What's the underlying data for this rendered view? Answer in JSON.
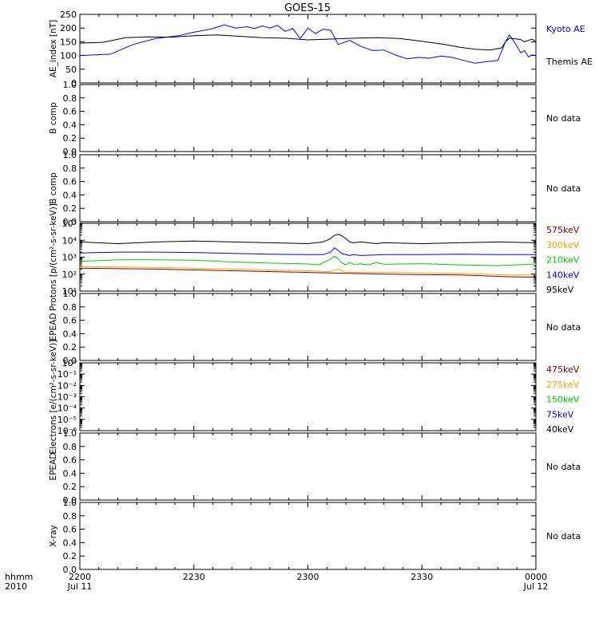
{
  "title": "GOES-15",
  "no_data_label": "No data",
  "time_axis": {
    "row1_label": "hhmm",
    "row2_label": "2010",
    "ticks": [
      {
        "label": "2200",
        "sub": "Jul 11",
        "minutes": 0
      },
      {
        "label": "2230",
        "sub": "",
        "minutes": 30
      },
      {
        "label": "2300",
        "sub": "",
        "minutes": 60
      },
      {
        "label": "2330",
        "sub": "",
        "minutes": 90
      },
      {
        "label": "0000",
        "sub": "Jul 12",
        "minutes": 120
      }
    ]
  },
  "chart_data": [
    {
      "id": "ae",
      "type": "line",
      "ylabel": "AE_index [nT]",
      "ylim": [
        0,
        250
      ],
      "yticks": [
        {
          "v": 0,
          "l": "0"
        },
        {
          "v": 50,
          "l": "50"
        },
        {
          "v": 100,
          "l": "100"
        },
        {
          "v": 150,
          "l": "150"
        },
        {
          "v": 200,
          "l": "200"
        },
        {
          "v": 250,
          "l": "250"
        }
      ],
      "series": [
        {
          "name": "Kyoto AE",
          "color": "#0000ff",
          "x": [
            0,
            8,
            14,
            20,
            26,
            30,
            35,
            38,
            41,
            44,
            46,
            48,
            50,
            52,
            54,
            56,
            58,
            60,
            62,
            64,
            66,
            68,
            71,
            74,
            77,
            80,
            83,
            86,
            89,
            92,
            95,
            98,
            101,
            104,
            107,
            110,
            112,
            113,
            114,
            115,
            116,
            117,
            118,
            119,
            120
          ],
          "y": [
            100,
            105,
            140,
            162,
            172,
            185,
            198,
            212,
            200,
            205,
            198,
            208,
            200,
            210,
            188,
            198,
            162,
            200,
            180,
            196,
            192,
            140,
            155,
            133,
            118,
            120,
            102,
            88,
            93,
            90,
            98,
            93,
            82,
            72,
            78,
            82,
            150,
            175,
            155,
            135,
            110,
            118,
            95,
            102,
            100
          ]
        },
        {
          "name": "Themis AE",
          "color": "#000000",
          "x": [
            0,
            6,
            12,
            18,
            24,
            30,
            36,
            42,
            48,
            54,
            60,
            66,
            72,
            78,
            84,
            90,
            96,
            100,
            104,
            108,
            111,
            112,
            113,
            114,
            115,
            116,
            117,
            118,
            119,
            120
          ],
          "y": [
            145,
            148,
            165,
            168,
            167,
            172,
            175,
            170,
            165,
            163,
            157,
            160,
            163,
            165,
            162,
            152,
            140,
            130,
            123,
            120,
            128,
            150,
            163,
            162,
            160,
            158,
            150,
            155,
            160,
            150
          ]
        }
      ]
    },
    {
      "id": "b1",
      "type": "line",
      "ylabel": "B comp",
      "ylim": [
        0,
        1
      ],
      "yticks": [
        {
          "v": 0,
          "l": "0.0"
        },
        {
          "v": 0.2,
          "l": "0.2"
        },
        {
          "v": 0.4,
          "l": "0.4"
        },
        {
          "v": 0.6,
          "l": "0.6"
        },
        {
          "v": 0.8,
          "l": "0.8"
        },
        {
          "v": 1.0,
          "l": "1.0"
        }
      ],
      "no_data": true,
      "series": []
    },
    {
      "id": "b2",
      "type": "line",
      "ylabel": "B comp",
      "ylim": [
        0,
        1
      ],
      "yticks": [
        {
          "v": 0,
          "l": "0.0"
        },
        {
          "v": 0.2,
          "l": "0.2"
        },
        {
          "v": 0.4,
          "l": "0.4"
        },
        {
          "v": 0.6,
          "l": "0.6"
        },
        {
          "v": 0.8,
          "l": "0.8"
        },
        {
          "v": 1.0,
          "l": "1.0"
        }
      ],
      "no_data": true,
      "series": []
    },
    {
      "id": "protons",
      "type": "line",
      "log": true,
      "ylabel": "Protons [p/(cm²-s-sr-keV)]",
      "ylim": [
        1,
        5
      ],
      "yticks": [
        {
          "v": 1,
          "l": "10¹"
        },
        {
          "v": 2,
          "l": "10²"
        },
        {
          "v": 3,
          "l": "10³"
        },
        {
          "v": 4,
          "l": "10⁴"
        },
        {
          "v": 5,
          "l": "10⁵"
        }
      ],
      "series": [
        {
          "name": "575keV",
          "color": "#800000",
          "x": [
            0,
            20,
            40,
            60,
            80,
            100,
            112,
            120
          ],
          "y": [
            2.35,
            2.3,
            2.2,
            2.1,
            2.0,
            1.95,
            1.85,
            1.82
          ]
        },
        {
          "name": "300keV",
          "color": "#ffa500",
          "x": [
            0,
            20,
            40,
            60,
            66,
            68,
            70,
            80,
            100,
            112,
            120
          ],
          "y": [
            2.45,
            2.4,
            2.3,
            2.2,
            2.15,
            2.3,
            2.1,
            2.1,
            2.05,
            1.95,
            1.95
          ]
        },
        {
          "name": "210keV",
          "color": "#00d000",
          "x": [
            0,
            10,
            20,
            30,
            40,
            50,
            60,
            63,
            66,
            67,
            68,
            69,
            70,
            71,
            72,
            74,
            76,
            78,
            80,
            90,
            100,
            110,
            120
          ],
          "y": [
            2.75,
            2.85,
            2.85,
            2.82,
            2.72,
            2.65,
            2.6,
            2.55,
            2.9,
            3.05,
            2.9,
            2.65,
            2.55,
            2.7,
            2.58,
            2.6,
            2.55,
            2.68,
            2.58,
            2.62,
            2.55,
            2.5,
            2.6
          ]
        },
        {
          "name": "140keV",
          "color": "#0000ff",
          "x": [
            0,
            10,
            20,
            30,
            40,
            50,
            60,
            64,
            66,
            67,
            68,
            69,
            70,
            71,
            72,
            74,
            80,
            90,
            100,
            110,
            120
          ],
          "y": [
            3.25,
            3.3,
            3.3,
            3.28,
            3.22,
            3.18,
            3.15,
            3.15,
            3.3,
            3.55,
            3.4,
            3.2,
            3.15,
            3.1,
            3.15,
            3.1,
            3.15,
            3.15,
            3.18,
            3.15,
            3.15
          ]
        },
        {
          "name": "95keV",
          "color": "#000000",
          "x": [
            0,
            10,
            20,
            30,
            40,
            50,
            60,
            64,
            66,
            67,
            68,
            69,
            70,
            71,
            72,
            74,
            78,
            80,
            90,
            100,
            110,
            120
          ],
          "y": [
            3.9,
            3.8,
            3.9,
            3.95,
            3.9,
            3.85,
            3.8,
            3.9,
            4.1,
            4.3,
            4.35,
            4.25,
            4.1,
            3.9,
            3.85,
            3.9,
            3.8,
            3.85,
            3.8,
            3.85,
            3.9,
            3.85
          ]
        }
      ]
    },
    {
      "id": "epead1",
      "type": "line",
      "ylabel": "EPEAD",
      "ylim": [
        0,
        1
      ],
      "yticks": [
        {
          "v": 0,
          "l": "0.0"
        },
        {
          "v": 0.2,
          "l": "0.2"
        },
        {
          "v": 0.4,
          "l": "0.4"
        },
        {
          "v": 0.6,
          "l": "0.6"
        },
        {
          "v": 0.8,
          "l": "0.8"
        },
        {
          "v": 1.0,
          "l": "1.0"
        }
      ],
      "no_data": true,
      "series": []
    },
    {
      "id": "electrons",
      "type": "line",
      "log": true,
      "ylabel": "Electrons [e/(cm²-s-sr-keV)]",
      "ylim": [
        -6,
        0
      ],
      "yticks": [
        {
          "v": -6,
          "l": "10⁻⁶"
        },
        {
          "v": -5,
          "l": "10⁻⁵"
        },
        {
          "v": -4,
          "l": "10⁻⁴"
        },
        {
          "v": -3,
          "l": "10⁻³"
        },
        {
          "v": -2,
          "l": "10⁻²"
        },
        {
          "v": -1,
          "l": "10⁻¹"
        },
        {
          "v": 0,
          "l": "10⁰"
        }
      ],
      "series": [
        {
          "name": "475keV",
          "color": "#800000",
          "x": [],
          "y": []
        },
        {
          "name": "275keV",
          "color": "#ffa500",
          "x": [],
          "y": []
        },
        {
          "name": "150keV",
          "color": "#00d000",
          "x": [],
          "y": []
        },
        {
          "name": "75keV",
          "color": "#0000ff",
          "x": [],
          "y": []
        },
        {
          "name": "40keV",
          "color": "#000000",
          "x": [],
          "y": []
        }
      ]
    },
    {
      "id": "epead2",
      "type": "line",
      "ylabel": "EPEAD",
      "ylim": [
        0,
        1
      ],
      "yticks": [
        {
          "v": 0,
          "l": "0.0"
        },
        {
          "v": 0.2,
          "l": "0.2"
        },
        {
          "v": 0.4,
          "l": "0.4"
        },
        {
          "v": 0.6,
          "l": "0.6"
        },
        {
          "v": 0.8,
          "l": "0.8"
        },
        {
          "v": 1.0,
          "l": "1.0"
        }
      ],
      "no_data": true,
      "series": []
    },
    {
      "id": "xray",
      "type": "line",
      "ylabel": "X-ray",
      "ylim": [
        0,
        1
      ],
      "yticks": [
        {
          "v": 0,
          "l": "0.0"
        },
        {
          "v": 0.2,
          "l": "0.2"
        },
        {
          "v": 0.4,
          "l": "0.4"
        },
        {
          "v": 0.6,
          "l": "0.6"
        },
        {
          "v": 0.8,
          "l": "0.8"
        },
        {
          "v": 1.0,
          "l": "1.0"
        }
      ],
      "no_data": true,
      "series": []
    }
  ]
}
